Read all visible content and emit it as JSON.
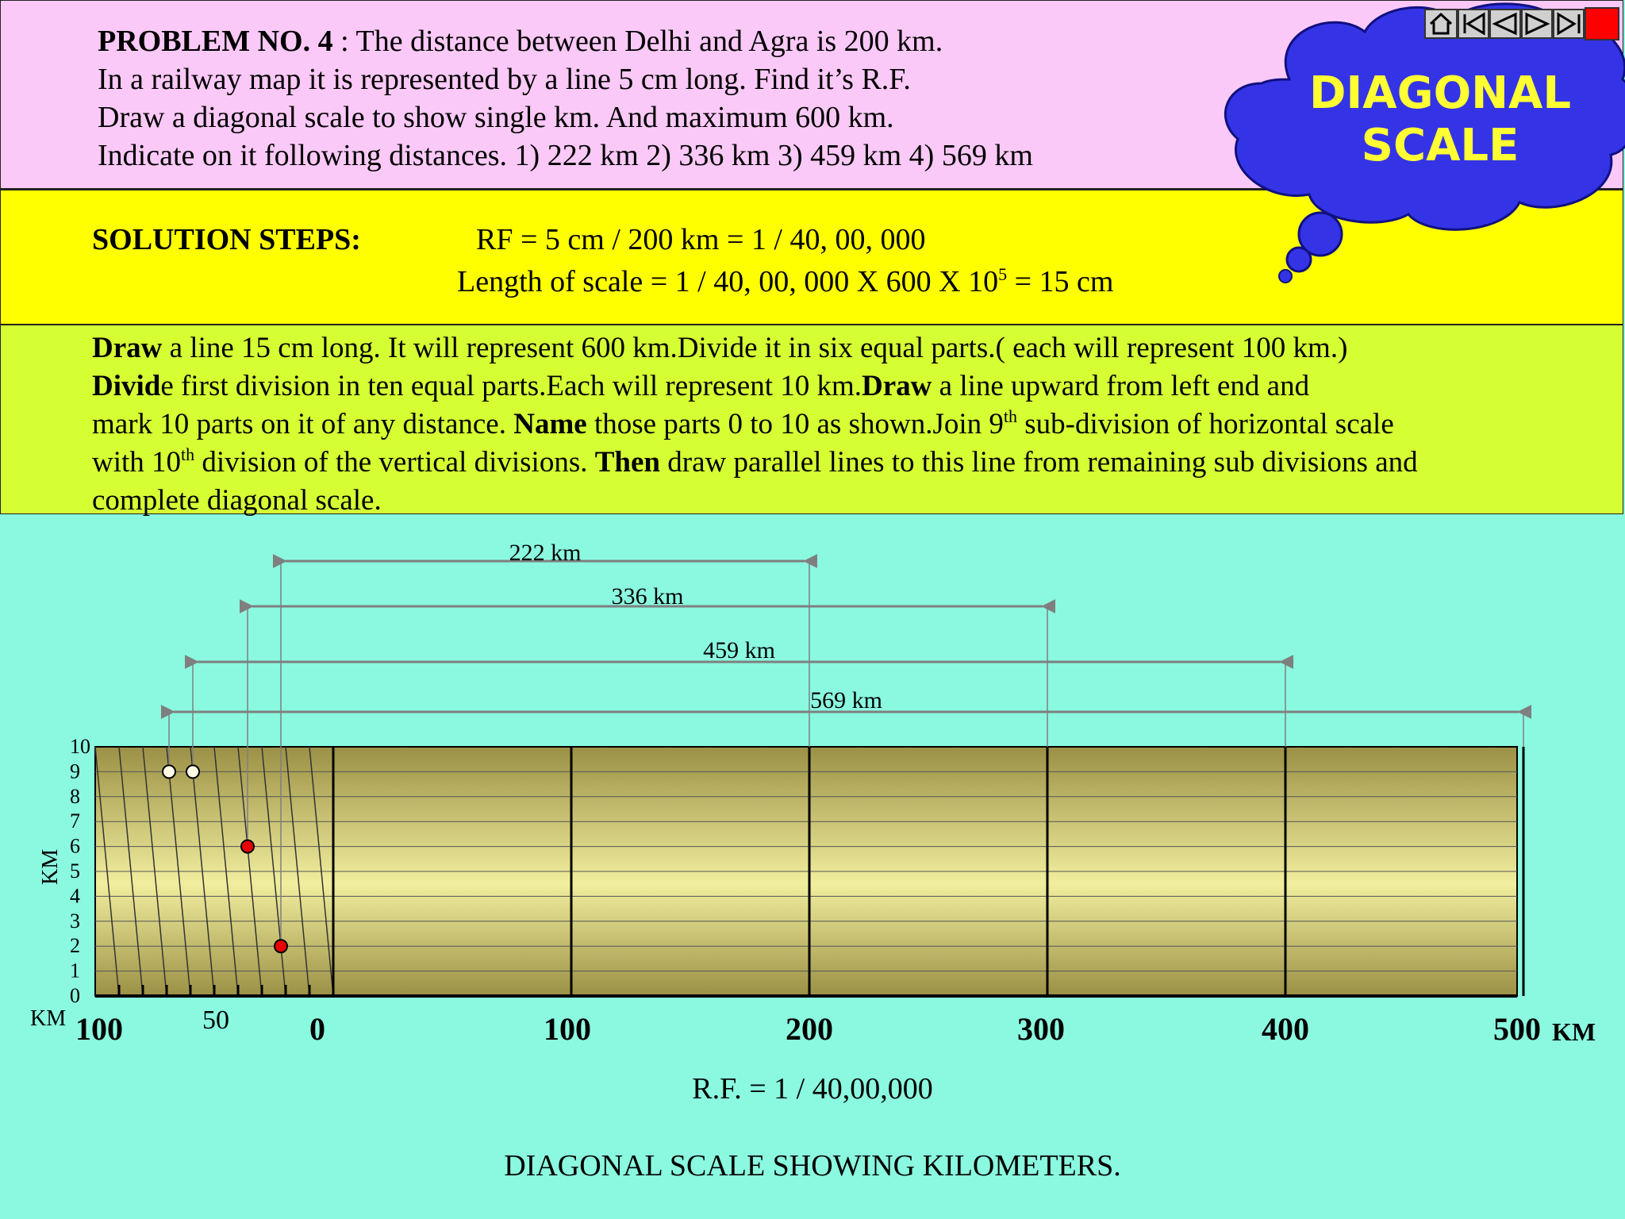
{
  "header": {
    "problem_label": "PROBLEM NO. 4",
    "problem_line1": " : The distance between Delhi and Agra is 200 km.",
    "problem_line2": "In a railway map it is represented by a line 5 cm long. Find it’s R.F.",
    "problem_line3": "Draw a diagonal scale to show single km.  And maximum 600 km.",
    "problem_line4": "Indicate on it following  distances. 1) 222 km  2) 336 km  3) 459 km  4) 569 km",
    "cloud_line1": "DIAGONAL",
    "cloud_line2": "SCALE"
  },
  "nav_icons": [
    "home-icon",
    "first-slide-icon",
    "previous-slide-icon",
    "next-slide-icon",
    "last-slide-icon",
    "end-show-icon"
  ],
  "solution": {
    "heading": "SOLUTION STEPS:",
    "rf_line": "RF = 5 cm / 200 km = 1 / 40, 00, 000",
    "length_prefix": "Length of scale = 1 / 40, 00, 000  X  600 X  10",
    "length_exp": "5",
    "length_suffix": " = 15 cm"
  },
  "steps": {
    "l1_b": "Draw",
    "l1": " a line 15 cm long. It will represent 600 km.Divide it in six equal parts.( each will represent 100 km.)",
    "l2_b1": "Divid",
    "l2_a": "e first division in ten equal parts.Each will represent 10 km.",
    "l2_b2": "Draw",
    "l2_c": " a line upward from left end and",
    "l3_a": "mark 10 parts on it of any distance.  ",
    "l3_b": "Name",
    "l3_c": " those parts  0 to 10 as shown.Join  9",
    "l3_sup": "th",
    "l3_d": " sub-division of horizontal scale",
    "l4_a": "with 10",
    "l4_sup": "th",
    "l4_b": " division of the vertical divisions. ",
    "l4_c": "Then",
    "l4_d": " draw parallel lines to this line from remaining sub divisions and",
    "l5": "complete diagonal scale."
  },
  "scale": {
    "vertical_label": "KM",
    "left_unit": "KM",
    "right_unit": "KM",
    "vertical_ticks": [
      "10",
      "9",
      "8",
      "7",
      "6",
      "5",
      "4",
      "3",
      "2",
      "1",
      "0"
    ],
    "main_labels": [
      "100",
      "0",
      "100",
      "200",
      "300",
      "400",
      "500"
    ],
    "sub_label": "50",
    "rf_text": "R.F. = 1 / 40,00,000",
    "caption": "DIAGONAL SCALE SHOWING KILOMETERS.",
    "colors": {
      "fill_top": "#9b9045",
      "fill_mid": "#f1ee9e",
      "fill_bottom": "#9b9045",
      "marker_red": "#e80000",
      "marker_white": "#fffbe6",
      "arrow": "#7f7f7f"
    }
  },
  "measurements": [
    {
      "label": "222 km",
      "km": 222
    },
    {
      "label": "336 km",
      "km": 336
    },
    {
      "label": "459 km",
      "km": 459
    },
    {
      "label": "569 km",
      "km": 569
    }
  ]
}
